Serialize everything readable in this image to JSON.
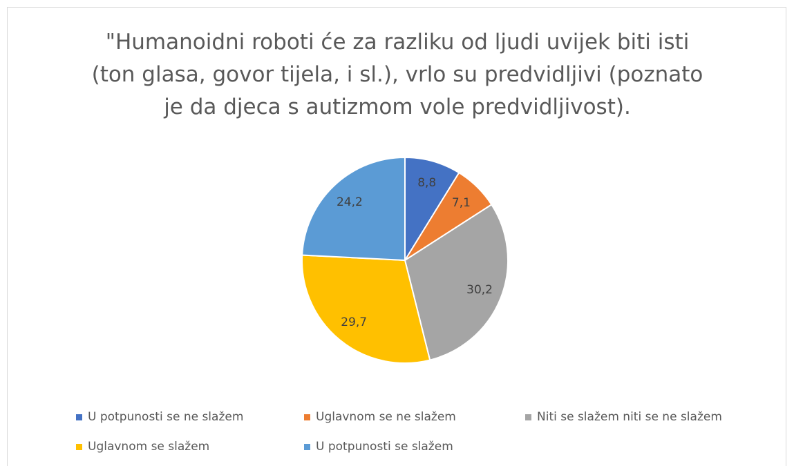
{
  "chart_data": {
    "type": "pie",
    "title": "\"Humanoidni roboti će za razliku od ljudi uvijek biti isti (ton glasa, govor tijela, i sl.), vrlo su predvidljivi (poznato je da djeca s autizmom vole predvidljivost).",
    "categories": [
      "U potpunosti se ne slažem",
      "Uglavnom se ne slažem",
      "Niti se slažem niti se ne slažem",
      "Uglavnom se slažem",
      "U potpunosti se slažem"
    ],
    "values": [
      8.8,
      7.1,
      30.2,
      29.7,
      24.2
    ],
    "value_labels": [
      "8,8",
      "7,1",
      "30,2",
      "29,7",
      "24,2"
    ],
    "colors": [
      "#4472c4",
      "#ed7d31",
      "#a5a5a5",
      "#ffc000",
      "#5b9bd5"
    ],
    "legend": "bottom"
  }
}
